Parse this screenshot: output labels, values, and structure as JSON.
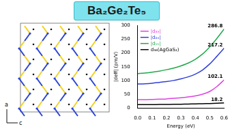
{
  "header": {
    "title": "Ba₂Ge₂Te₅"
  },
  "structure": {
    "axis_labels": [
      "a",
      "c"
    ]
  },
  "chart_data": {
    "type": "line",
    "x_label": "Energy (eV)",
    "y_label": "|deff| (pm/V)",
    "x": [
      0,
      0.05,
      0.1,
      0.15,
      0.2,
      0.25,
      0.3,
      0.35,
      0.4,
      0.45,
      0.5,
      0.55,
      0.6
    ],
    "series": [
      {
        "name": "|d₃₃|",
        "color": "#e040e0",
        "values": [
          30,
          30,
          31,
          32,
          33,
          35,
          37,
          40,
          44,
          50,
          60,
          78,
          102.1
        ]
      },
      {
        "name": "|d₂₄|",
        "color": "#2f3fd6",
        "values": [
          87,
          88,
          90,
          93,
          96,
          100,
          106,
          113,
          123,
          138,
          160,
          188,
          217.2
        ]
      },
      {
        "name": "|d₁₅|",
        "color": "#20a84a",
        "values": [
          125,
          127,
          130,
          134,
          139,
          145,
          153,
          163,
          177,
          196,
          222,
          253,
          286.8
        ]
      },
      {
        "name": "d₃₆(AgGaS₂)",
        "color": "#000000",
        "values": [
          12,
          12,
          12.3,
          12.6,
          13,
          13.3,
          13.7,
          14.2,
          14.8,
          15.5,
          16.3,
          17.2,
          18.2
        ]
      }
    ],
    "annotations": [
      {
        "text": "286.8",
        "x": 0.6,
        "y": 286.8
      },
      {
        "text": "217.2",
        "x": 0.6,
        "y": 217.2
      },
      {
        "text": "102.1",
        "x": 0.6,
        "y": 102.1
      },
      {
        "text": "18.2",
        "x": 0.6,
        "y": 18.2
      }
    ],
    "xlim": [
      0,
      0.6
    ],
    "xticks": [
      {
        "value": 0,
        "label": "0.0"
      },
      {
        "value": 0.1,
        "label": "0.1"
      },
      {
        "value": 0.2,
        "label": "0.2"
      },
      {
        "value": 0.3,
        "label": "0.3"
      },
      {
        "value": 0.4,
        "label": "0.4"
      },
      {
        "value": 0.5,
        "label": "0.5"
      },
      {
        "value": 0.6,
        "label": "0.6"
      }
    ],
    "ylim": [
      0,
      300
    ],
    "yticks": [
      0,
      50,
      100,
      150,
      200,
      250,
      300
    ],
    "legend": "upper left",
    "grid": false
  }
}
